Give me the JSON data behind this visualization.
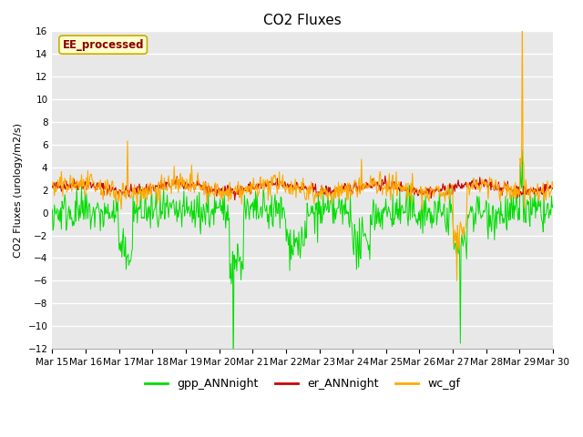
{
  "title": "CO2 Fluxes",
  "ylabel": "CO2 Fluxes (urology/m2/s)",
  "ylim": [
    -12,
    16
  ],
  "yticks": [
    -12,
    -10,
    -8,
    -6,
    -4,
    -2,
    0,
    2,
    4,
    6,
    8,
    10,
    12,
    14,
    16
  ],
  "n_days": 15,
  "n_per_day": 48,
  "x_tick_labels": [
    "Mar 15",
    "Mar 16",
    "Mar 17",
    "Mar 18",
    "Mar 19",
    "Mar 20",
    "Mar 21",
    "Mar 22",
    "Mar 23",
    "Mar 24",
    "Mar 25",
    "Mar 26",
    "Mar 27",
    "Mar 28",
    "Mar 29",
    "Mar 30"
  ],
  "colors": {
    "gpp_ANNnight": "#00dd00",
    "er_ANNnight": "#cc0000",
    "wc_gf": "#ffaa00"
  },
  "fig_bg_color": "#ffffff",
  "plot_bg_color": "#e8e8e8",
  "grid_color": "#f5f5f5",
  "annotation_text": "EE_processed",
  "annotation_box_color": "#ffffcc",
  "annotation_text_color": "#880000",
  "annotation_border_color": "#ccaa00",
  "title_fontsize": 11,
  "label_fontsize": 8,
  "tick_fontsize": 7.5
}
